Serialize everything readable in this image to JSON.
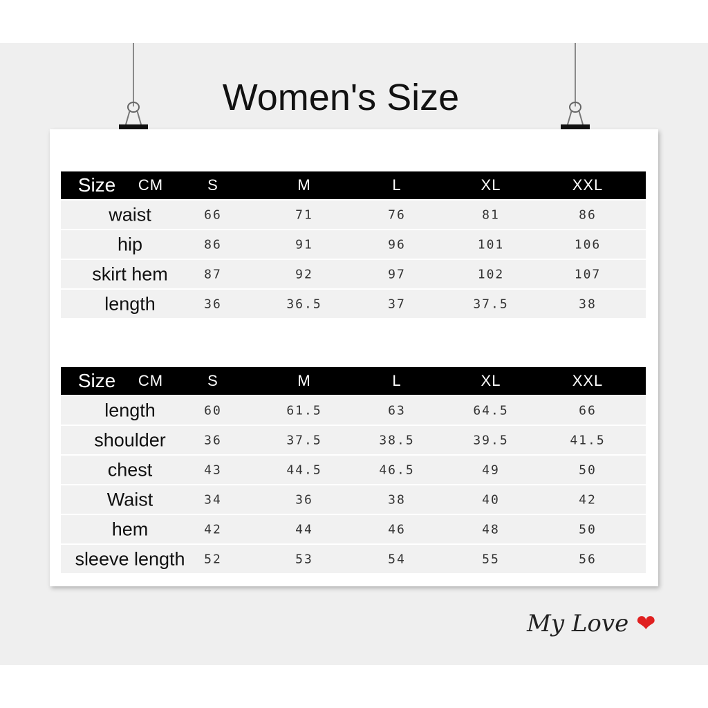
{
  "title": "Women's Size",
  "columns": {
    "size": "Size",
    "unit": "CM",
    "sizes": [
      "S",
      "M",
      "L",
      "XL",
      "XXL"
    ]
  },
  "table_bottoms": {
    "rows": [
      {
        "label": "waist",
        "values": [
          "66",
          "71",
          "76",
          "81",
          "86"
        ]
      },
      {
        "label": "hip",
        "values": [
          "86",
          "91",
          "96",
          "101",
          "106"
        ]
      },
      {
        "label": "skirt hem",
        "values": [
          "87",
          "92",
          "97",
          "102",
          "107"
        ]
      },
      {
        "label": "length",
        "values": [
          "36",
          "36.5",
          "37",
          "37.5",
          "38"
        ]
      }
    ]
  },
  "table_tops": {
    "rows": [
      {
        "label": "length",
        "values": [
          "60",
          "61.5",
          "63",
          "64.5",
          "66"
        ]
      },
      {
        "label": "shoulder",
        "values": [
          "36",
          "37.5",
          "38.5",
          "39.5",
          "41.5"
        ]
      },
      {
        "label": "chest",
        "values": [
          "43",
          "44.5",
          "46.5",
          "49",
          "50"
        ]
      },
      {
        "label": "Waist",
        "values": [
          "34",
          "36",
          "38",
          "40",
          "42"
        ]
      },
      {
        "label": "hem",
        "values": [
          "42",
          "44",
          "46",
          "48",
          "50"
        ]
      },
      {
        "label": "sleeve length",
        "values": [
          "52",
          "53",
          "54",
          "55",
          "56"
        ]
      }
    ]
  },
  "signature": {
    "text": "My Love",
    "icon": "heart-icon",
    "color": "#e02020"
  }
}
